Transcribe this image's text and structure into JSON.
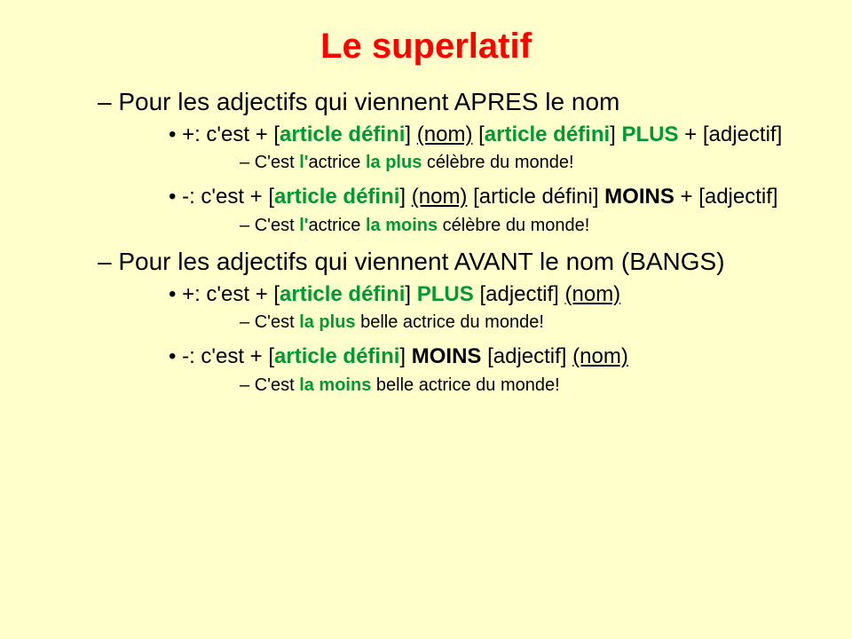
{
  "title": "Le superlatif",
  "colors": {
    "background": "#ffffcc",
    "title": "#ff0000",
    "body": "#000000",
    "accent": "#009933"
  },
  "typography": {
    "font_family": "Comic Sans MS",
    "title_fontsize": 40,
    "lvl1_fontsize": 28,
    "lvl2_fontsize": 24,
    "lvl3_fontsize": 20
  },
  "section_a": {
    "heading": "Pour les adjectifs qui viennent APRES le nom",
    "plus": {
      "prefix": "+: c'est + [",
      "article": "article défini",
      "mid1": "]  ",
      "nom": "(nom)",
      "mid2": "  [",
      "article2": "article défini",
      "mid3": "] ",
      "plus_word": "PLUS",
      "suffix": " + [adjectif]",
      "example_pre": "C'est ",
      "example_l": "l'",
      "example_mid1": "actrice ",
      "example_la_plus": "la plus",
      "example_post": " célèbre du monde!"
    },
    "moins": {
      "prefix": "-: c'est + [",
      "article": "article défini",
      "mid1": "]  ",
      "nom": "(nom)",
      "mid2": "  [",
      "article2_plain": "article défini] ",
      "moins_word": "MOINS",
      "suffix": " + [adjectif]",
      "example_pre": "C'est ",
      "example_l": "l'",
      "example_mid1": "actrice ",
      "example_la_moins": "la moins",
      "example_post": " célèbre du monde!"
    }
  },
  "section_b": {
    "heading": "Pour les adjectifs qui viennent AVANT le nom (BANGS)",
    "plus": {
      "prefix": "+: c'est + [",
      "article": "article défini",
      "mid1": "] ",
      "plus_word": "PLUS",
      "mid2": " [adjectif]  ",
      "nom": "(nom)",
      "trailing_underline": "        ",
      "example_pre": "C'est ",
      "example_la_plus": "la plus",
      "example_post": " belle actrice du monde!"
    },
    "moins": {
      "prefix": "-: c'est + [",
      "article": "article défini",
      "mid1": "] ",
      "moins_word": "MOINS",
      "mid2": " [adjectif]  ",
      "nom": "(nom)",
      "trailing_underline": "    ",
      "example_pre": "C'est ",
      "example_la_moins": "la moins",
      "example_post": " belle actrice du monde!"
    }
  }
}
